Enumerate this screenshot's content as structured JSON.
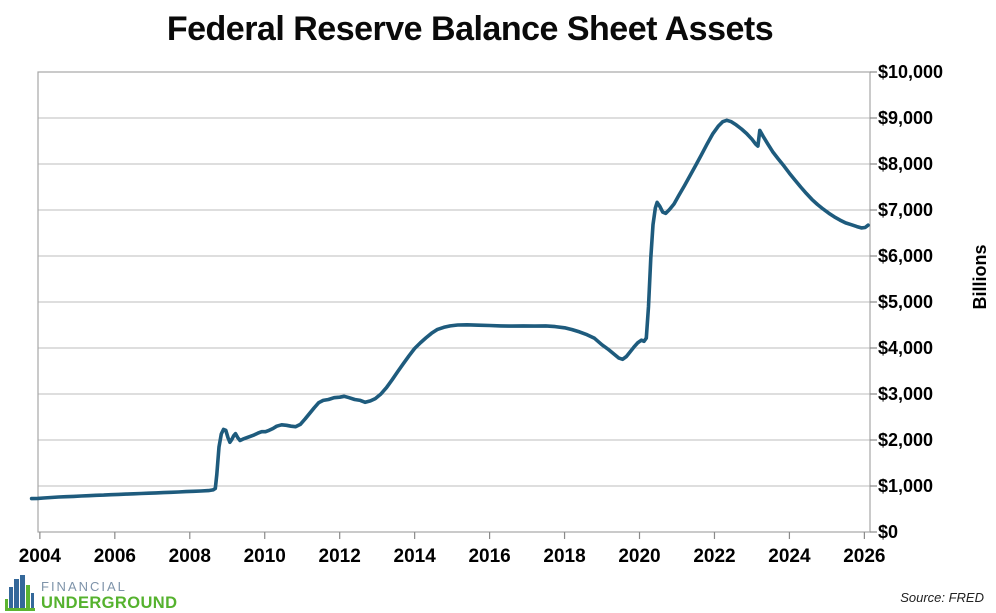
{
  "title": "Federal Reserve Balance Sheet Assets",
  "source_note": "Source: FRED",
  "logo": {
    "line1": "FINANCIAL",
    "line2": "UNDERGROUND"
  },
  "colors": {
    "line": "#1e5b7d",
    "grid": "#bdbdbd",
    "border": "#a6a6a6",
    "tick": "#8a8a8a",
    "label": "#000000",
    "logo_blue": "#34689a",
    "logo_green": "#5cb431",
    "logo_text_blue": "#7e93a9",
    "logo_text_green": "#55b22e"
  },
  "chart_data": {
    "type": "line",
    "title": "Federal Reserve Balance Sheet Assets",
    "xlabel": "",
    "ylabel": "Billions",
    "xlim": [
      2003.95,
      2026.15
    ],
    "ylim": [
      0,
      10000
    ],
    "grid": true,
    "legend_position": "none",
    "x_ticks": [
      2004,
      2006,
      2008,
      2010,
      2012,
      2014,
      2016,
      2018,
      2020,
      2022,
      2024,
      2026
    ],
    "x_tick_labels": [
      "2004",
      "2006",
      "2008",
      "2010",
      "2012",
      "2014",
      "2016",
      "2018",
      "2020",
      "2022",
      "2024",
      "2026"
    ],
    "y_ticks": [
      0,
      1000,
      2000,
      3000,
      4000,
      5000,
      6000,
      7000,
      8000,
      9000,
      10000
    ],
    "y_tick_labels": [
      "$0",
      "$1,000",
      "$2,000",
      "$3,000",
      "$4,000",
      "$5,000",
      "$6,000",
      "$7,000",
      "$8,000",
      "$9,000",
      "$10,000"
    ],
    "series": [
      {
        "name": "Federal Reserve total assets (billions of dollars)",
        "color": "#1e5b7d",
        "points": [
          [
            2003.78,
            725
          ],
          [
            2003.95,
            730
          ],
          [
            2004.1,
            740
          ],
          [
            2004.3,
            750
          ],
          [
            2004.5,
            760
          ],
          [
            2004.7,
            768
          ],
          [
            2004.9,
            775
          ],
          [
            2005.1,
            782
          ],
          [
            2005.3,
            790
          ],
          [
            2005.5,
            797
          ],
          [
            2005.7,
            803
          ],
          [
            2005.9,
            810
          ],
          [
            2006.1,
            818
          ],
          [
            2006.3,
            824
          ],
          [
            2006.5,
            830
          ],
          [
            2006.7,
            836
          ],
          [
            2006.9,
            843
          ],
          [
            2007.1,
            850
          ],
          [
            2007.3,
            857
          ],
          [
            2007.5,
            863
          ],
          [
            2007.7,
            870
          ],
          [
            2007.9,
            878
          ],
          [
            2008.1,
            885
          ],
          [
            2008.3,
            892
          ],
          [
            2008.5,
            900
          ],
          [
            2008.62,
            915
          ],
          [
            2008.68,
            945
          ],
          [
            2008.72,
            1250
          ],
          [
            2008.78,
            1850
          ],
          [
            2008.84,
            2130
          ],
          [
            2008.9,
            2230
          ],
          [
            2008.96,
            2210
          ],
          [
            2009.02,
            2050
          ],
          [
            2009.07,
            1950
          ],
          [
            2009.12,
            2010
          ],
          [
            2009.17,
            2090
          ],
          [
            2009.22,
            2140
          ],
          [
            2009.28,
            2050
          ],
          [
            2009.34,
            1990
          ],
          [
            2009.42,
            2020
          ],
          [
            2009.52,
            2050
          ],
          [
            2009.62,
            2080
          ],
          [
            2009.72,
            2110
          ],
          [
            2009.82,
            2150
          ],
          [
            2009.92,
            2180
          ],
          [
            2010.02,
            2180
          ],
          [
            2010.12,
            2210
          ],
          [
            2010.22,
            2250
          ],
          [
            2010.32,
            2300
          ],
          [
            2010.45,
            2330
          ],
          [
            2010.58,
            2320
          ],
          [
            2010.7,
            2300
          ],
          [
            2010.82,
            2290
          ],
          [
            2010.95,
            2340
          ],
          [
            2011.08,
            2460
          ],
          [
            2011.2,
            2580
          ],
          [
            2011.32,
            2700
          ],
          [
            2011.44,
            2810
          ],
          [
            2011.56,
            2860
          ],
          [
            2011.7,
            2880
          ],
          [
            2011.85,
            2920
          ],
          [
            2012.0,
            2930
          ],
          [
            2012.12,
            2950
          ],
          [
            2012.25,
            2920
          ],
          [
            2012.4,
            2880
          ],
          [
            2012.55,
            2860
          ],
          [
            2012.68,
            2820
          ],
          [
            2012.82,
            2850
          ],
          [
            2012.95,
            2900
          ],
          [
            2013.1,
            3000
          ],
          [
            2013.25,
            3140
          ],
          [
            2013.4,
            3310
          ],
          [
            2013.55,
            3490
          ],
          [
            2013.7,
            3660
          ],
          [
            2013.85,
            3830
          ],
          [
            2014.0,
            3990
          ],
          [
            2014.15,
            4110
          ],
          [
            2014.3,
            4220
          ],
          [
            2014.45,
            4320
          ],
          [
            2014.6,
            4400
          ],
          [
            2014.78,
            4450
          ],
          [
            2014.95,
            4480
          ],
          [
            2015.15,
            4500
          ],
          [
            2015.4,
            4505
          ],
          [
            2015.7,
            4495
          ],
          [
            2016.0,
            4490
          ],
          [
            2016.3,
            4480
          ],
          [
            2016.6,
            4475
          ],
          [
            2016.9,
            4480
          ],
          [
            2017.2,
            4475
          ],
          [
            2017.5,
            4480
          ],
          [
            2017.75,
            4465
          ],
          [
            2018.0,
            4440
          ],
          [
            2018.2,
            4400
          ],
          [
            2018.4,
            4350
          ],
          [
            2018.6,
            4290
          ],
          [
            2018.8,
            4210
          ],
          [
            2019.0,
            4070
          ],
          [
            2019.15,
            3980
          ],
          [
            2019.3,
            3880
          ],
          [
            2019.45,
            3780
          ],
          [
            2019.55,
            3755
          ],
          [
            2019.65,
            3815
          ],
          [
            2019.75,
            3915
          ],
          [
            2019.85,
            4020
          ],
          [
            2019.95,
            4110
          ],
          [
            2020.05,
            4170
          ],
          [
            2020.12,
            4145
          ],
          [
            2020.18,
            4215
          ],
          [
            2020.24,
            4900
          ],
          [
            2020.3,
            5960
          ],
          [
            2020.36,
            6680
          ],
          [
            2020.42,
            7040
          ],
          [
            2020.47,
            7165
          ],
          [
            2020.54,
            7080
          ],
          [
            2020.62,
            6955
          ],
          [
            2020.7,
            6925
          ],
          [
            2020.8,
            7010
          ],
          [
            2020.92,
            7130
          ],
          [
            2021.05,
            7320
          ],
          [
            2021.2,
            7530
          ],
          [
            2021.35,
            7750
          ],
          [
            2021.5,
            7970
          ],
          [
            2021.65,
            8200
          ],
          [
            2021.8,
            8430
          ],
          [
            2021.95,
            8650
          ],
          [
            2022.1,
            8820
          ],
          [
            2022.22,
            8920
          ],
          [
            2022.33,
            8950
          ],
          [
            2022.45,
            8920
          ],
          [
            2022.58,
            8850
          ],
          [
            2022.72,
            8760
          ],
          [
            2022.86,
            8660
          ],
          [
            2023.0,
            8540
          ],
          [
            2023.1,
            8430
          ],
          [
            2023.16,
            8390
          ],
          [
            2023.21,
            8730
          ],
          [
            2023.3,
            8600
          ],
          [
            2023.42,
            8440
          ],
          [
            2023.55,
            8270
          ],
          [
            2023.7,
            8110
          ],
          [
            2023.85,
            7960
          ],
          [
            2024.0,
            7800
          ],
          [
            2024.15,
            7650
          ],
          [
            2024.3,
            7500
          ],
          [
            2024.45,
            7360
          ],
          [
            2024.6,
            7230
          ],
          [
            2024.75,
            7120
          ],
          [
            2024.9,
            7020
          ],
          [
            2025.05,
            6930
          ],
          [
            2025.2,
            6850
          ],
          [
            2025.35,
            6780
          ],
          [
            2025.5,
            6720
          ],
          [
            2025.65,
            6680
          ],
          [
            2025.8,
            6640
          ],
          [
            2025.92,
            6610
          ],
          [
            2026.02,
            6620
          ],
          [
            2026.1,
            6670
          ]
        ]
      }
    ]
  }
}
